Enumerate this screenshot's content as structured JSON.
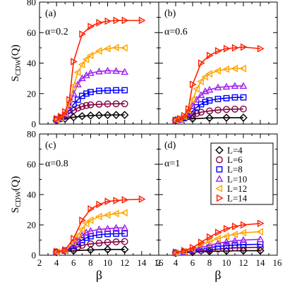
{
  "chart_data": [
    {
      "panel": "(a)",
      "annotation": "α=0.2",
      "type": "line",
      "xlim": [
        2,
        16
      ],
      "ylim": [
        0,
        80
      ],
      "xticks": [
        2,
        4,
        6,
        8,
        10,
        12,
        14,
        16
      ],
      "yticks": [
        0,
        20,
        40,
        60,
        80
      ],
      "xlabel": "",
      "ylabel": "S_CDW(Q)",
      "series": [
        {
          "name": "L=4",
          "x": [
            4,
            5,
            6,
            7,
            8,
            9,
            10,
            11,
            12
          ],
          "y": [
            2.5,
            3.5,
            4.5,
            5.2,
            5.6,
            5.8,
            5.9,
            6.0,
            6.0
          ]
        },
        {
          "name": "L=6",
          "x": [
            4,
            4.5,
            5,
            5.5,
            6,
            6.5,
            7,
            7.5,
            8,
            9,
            10,
            11,
            12
          ],
          "y": [
            2.5,
            3.5,
            5.0,
            7.0,
            9.0,
            10.5,
            11.5,
            12.2,
            12.6,
            13.0,
            13.2,
            13.3,
            13.3
          ]
        },
        {
          "name": "L=8",
          "x": [
            4,
            4.5,
            5,
            5.5,
            6,
            6.5,
            7,
            7.5,
            8,
            9,
            10,
            11,
            12
          ],
          "y": [
            3.0,
            4.0,
            6.0,
            9.0,
            13.0,
            16.0,
            18.5,
            20.0,
            21.0,
            21.8,
            22.0,
            22.2,
            22.2
          ]
        },
        {
          "name": "L=10",
          "x": [
            4,
            4.5,
            5,
            5.5,
            6,
            6.5,
            7,
            7.5,
            8,
            9,
            10,
            11,
            12
          ],
          "y": [
            3.0,
            4.0,
            6.5,
            12.0,
            20.0,
            26.0,
            30.0,
            32.0,
            33.5,
            34.5,
            35.0,
            34.8,
            34.2
          ]
        },
        {
          "name": "L=12",
          "x": [
            4,
            4.5,
            5,
            5.5,
            6,
            6.5,
            7,
            7.5,
            8,
            9,
            10,
            11,
            12
          ],
          "y": [
            3.0,
            4.0,
            7.0,
            13.0,
            25.0,
            34.0,
            39.0,
            42.5,
            45.0,
            48.0,
            49.5,
            50.2,
            50.0
          ]
        },
        {
          "name": "L=14",
          "x": [
            4,
            4.5,
            5,
            5.5,
            6,
            7,
            8,
            9,
            10,
            11,
            12,
            14
          ],
          "y": [
            3.5,
            5.0,
            8.0,
            16.0,
            41.0,
            59.0,
            64.0,
            66.5,
            67.5,
            68.0,
            68.0,
            68.0
          ]
        }
      ]
    },
    {
      "panel": "(b)",
      "annotation": "α=0.6",
      "type": "line",
      "xlim": [
        2,
        16
      ],
      "ylim": [
        0,
        80
      ],
      "xticks": [
        2,
        4,
        6,
        8,
        10,
        12,
        14,
        16
      ],
      "yticks": [
        0,
        20,
        40,
        60,
        80
      ],
      "xlabel": "",
      "ylabel": "",
      "series": [
        {
          "name": "L=4",
          "x": [
            4,
            6,
            8,
            10,
            12
          ],
          "y": [
            2.5,
            3.5,
            4.0,
            4.2,
            4.2
          ]
        },
        {
          "name": "L=6",
          "x": [
            4,
            4.5,
            5,
            5.5,
            6,
            6.5,
            7,
            8,
            9,
            10,
            11,
            12
          ],
          "y": [
            2.5,
            3.0,
            4.0,
            5.0,
            6.0,
            7.0,
            7.8,
            8.6,
            9.2,
            9.6,
            9.8,
            9.9
          ]
        },
        {
          "name": "L=8",
          "x": [
            4,
            4.5,
            5,
            5.5,
            6,
            6.5,
            7,
            7.5,
            8,
            9,
            10,
            11,
            12
          ],
          "y": [
            2.5,
            3.0,
            4.0,
            6.0,
            8.5,
            11.0,
            13.0,
            14.5,
            15.5,
            16.5,
            17.0,
            17.5,
            17.5
          ]
        },
        {
          "name": "L=10",
          "x": [
            4,
            4.5,
            5,
            5.5,
            6,
            6.5,
            7,
            7.5,
            8,
            9,
            10,
            11,
            12
          ],
          "y": [
            2.5,
            3.0,
            4.5,
            7.5,
            12.0,
            16.0,
            19.0,
            21.5,
            22.5,
            24.0,
            24.5,
            25.0,
            25.0
          ]
        },
        {
          "name": "L=12",
          "x": [
            4,
            4.5,
            5,
            5.5,
            6,
            6.5,
            7,
            7.5,
            8,
            9,
            10,
            11,
            12
          ],
          "y": [
            2.5,
            3.5,
            5.0,
            9.0,
            16.0,
            23.0,
            28.0,
            31.0,
            33.0,
            35.0,
            36.0,
            36.5,
            36.5
          ]
        },
        {
          "name": "L=14",
          "x": [
            4,
            4.5,
            5,
            5.5,
            6,
            7,
            8,
            9,
            10,
            11,
            12,
            14
          ],
          "y": [
            2.5,
            3.5,
            5.5,
            10.0,
            26.0,
            40.0,
            45.0,
            48.0,
            49.5,
            50.0,
            50.5,
            49.5
          ]
        }
      ]
    },
    {
      "panel": "(c)",
      "annotation": "α=0.8",
      "type": "line",
      "xlim": [
        2,
        16
      ],
      "ylim": [
        0,
        80
      ],
      "xticks": [
        2,
        4,
        6,
        8,
        10,
        12,
        14,
        16
      ],
      "yticks": [
        0,
        20,
        40,
        60,
        80
      ],
      "xlabel": "β",
      "ylabel": "S_CDW(Q)",
      "series": [
        {
          "name": "L=4",
          "x": [
            4,
            6,
            8,
            10,
            12
          ],
          "y": [
            2.0,
            3.0,
            3.5,
            3.8,
            3.8
          ]
        },
        {
          "name": "L=6",
          "x": [
            4,
            5,
            6,
            6.5,
            7,
            8,
            9,
            10,
            11,
            12
          ],
          "y": [
            2.0,
            3.0,
            4.5,
            5.5,
            6.5,
            7.5,
            8.0,
            8.5,
            8.8,
            9.0
          ]
        },
        {
          "name": "L=8",
          "x": [
            4,
            5,
            6,
            6.5,
            7,
            7.5,
            8,
            9,
            10,
            11,
            12
          ],
          "y": [
            2.0,
            3.0,
            6.0,
            8.5,
            10.0,
            11.5,
            12.5,
            13.5,
            14.0,
            14.2,
            14.3
          ]
        },
        {
          "name": "L=10",
          "x": [
            4,
            5,
            6,
            6.5,
            7,
            7.5,
            8,
            9,
            10,
            11,
            12
          ],
          "y": [
            2.0,
            3.0,
            7.0,
            10.0,
            13.0,
            15.0,
            16.0,
            17.0,
            17.5,
            18.0,
            18.0
          ]
        },
        {
          "name": "L=12",
          "x": [
            4,
            5,
            6,
            6.5,
            7,
            7.5,
            8,
            9,
            10,
            11,
            12
          ],
          "y": [
            2.0,
            3.0,
            8.5,
            13.0,
            17.0,
            21.0,
            23.0,
            25.5,
            26.5,
            27.5,
            28.0
          ]
        },
        {
          "name": "L=14",
          "x": [
            4,
            5,
            6,
            7,
            8,
            9,
            10,
            11,
            12,
            14
          ],
          "y": [
            2.5,
            3.5,
            11.0,
            23.0,
            30.5,
            33.5,
            35.5,
            36.0,
            36.5,
            37.0
          ]
        }
      ]
    },
    {
      "panel": "(d)",
      "annotation": "α=1",
      "type": "line",
      "xlim": [
        2,
        16
      ],
      "ylim": [
        0,
        80
      ],
      "xticks": [
        2,
        4,
        6,
        8,
        10,
        12,
        14,
        16
      ],
      "yticks": [
        0,
        20,
        40,
        60,
        80
      ],
      "xlabel": "β",
      "ylabel": "",
      "legend": {
        "position": "upper-right",
        "entries": [
          "L=4",
          "L=6",
          "L=8",
          "L=10",
          "L=12",
          "L=14"
        ]
      },
      "series": [
        {
          "name": "L=4",
          "x": [
            4,
            6,
            8,
            10,
            12,
            14
          ],
          "y": [
            1.5,
            2.0,
            2.5,
            2.8,
            3.0,
            3.0
          ]
        },
        {
          "name": "L=6",
          "x": [
            4,
            5,
            6,
            7,
            8,
            9,
            10,
            11,
            12,
            14
          ],
          "y": [
            1.5,
            2.0,
            2.5,
            3.0,
            3.5,
            4.0,
            4.5,
            4.8,
            5.0,
            5.2
          ]
        },
        {
          "name": "L=8",
          "x": [
            4,
            5,
            6,
            7,
            8,
            9,
            10,
            11,
            12,
            14
          ],
          "y": [
            1.5,
            2.0,
            3.0,
            4.0,
            5.0,
            5.8,
            6.3,
            6.7,
            7.0,
            7.2
          ]
        },
        {
          "name": "L=10",
          "x": [
            4,
            5,
            6,
            7,
            8,
            9,
            10,
            11,
            12,
            14
          ],
          "y": [
            1.5,
            2.0,
            3.5,
            5.0,
            6.5,
            7.8,
            8.8,
            9.5,
            10.0,
            10.5
          ]
        },
        {
          "name": "L=12",
          "x": [
            4,
            5,
            6,
            7,
            8,
            9,
            10,
            11,
            12,
            14
          ],
          "y": [
            1.5,
            2.5,
            4.0,
            6.5,
            9.0,
            11.0,
            12.5,
            13.8,
            14.8,
            15.5
          ]
        },
        {
          "name": "L=14",
          "x": [
            4,
            5,
            6,
            7,
            8,
            9,
            10,
            11,
            12,
            14
          ],
          "y": [
            2.0,
            3.0,
            5.0,
            8.5,
            12.0,
            15.0,
            17.5,
            19.0,
            20.0,
            21.0
          ]
        }
      ]
    }
  ],
  "series_styles": [
    {
      "name": "L=4",
      "color": "#000000",
      "marker": "diamond"
    },
    {
      "name": "L=6",
      "color": "#800040",
      "marker": "circle"
    },
    {
      "name": "L=8",
      "color": "#0000ff",
      "marker": "square"
    },
    {
      "name": "L=10",
      "color": "#a020f0",
      "marker": "triangle-up"
    },
    {
      "name": "L=12",
      "color": "#ffa500",
      "marker": "triangle-left"
    },
    {
      "name": "L=14",
      "color": "#ff2000",
      "marker": "triangle-right"
    }
  ]
}
